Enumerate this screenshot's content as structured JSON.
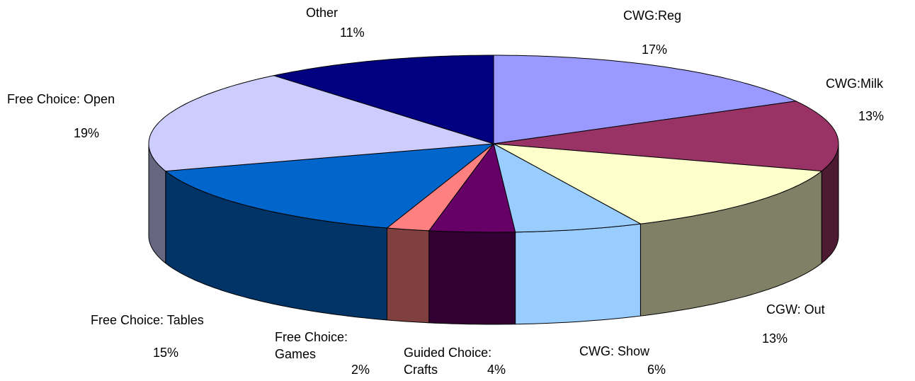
{
  "chart_data": {
    "type": "pie3d",
    "categories": [
      "CWG:Reg",
      "CWG:Milk",
      "CGW: Out",
      "CWG: Show",
      "Guided Choice: Crafts",
      "Free Choice: Games",
      "Free Choice: Tables",
      "Free Choice: Open",
      "Other"
    ],
    "values": [
      17,
      13,
      13,
      6,
      4,
      2,
      15,
      19,
      11
    ],
    "value_labels": [
      "17%",
      "13%",
      "13%",
      "6%",
      "4%",
      "2%",
      "15%",
      "19%",
      "11%"
    ],
    "colors": [
      "#9999ff",
      "#993366",
      "#ffffcc",
      "#99ccff",
      "#660066",
      "#ff8080",
      "#0066cc",
      "#ccccff",
      "#000080"
    ],
    "side_colors": [
      "#4d4d80",
      "#4d1a33",
      "#808066",
      "#99ccff",
      "#330033",
      "#804040",
      "#003366",
      "#666680",
      "#000040"
    ]
  }
}
